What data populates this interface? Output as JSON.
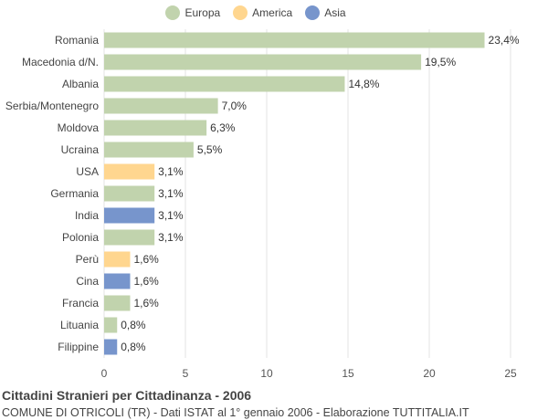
{
  "legend": [
    {
      "label": "Europa",
      "color": "#c1d3ad"
    },
    {
      "label": "America",
      "color": "#ffd68f"
    },
    {
      "label": "Asia",
      "color": "#7795cc"
    }
  ],
  "footer": {
    "title": "Cittadini Stranieri per Cittadinanza - 2006",
    "subtitle": "COMUNE DI OTRICOLI (TR) - Dati ISTAT al 1° gennaio 2006 - Elaborazione TUTTITALIA.IT"
  },
  "chart_data": {
    "type": "bar",
    "orientation": "horizontal",
    "categories": [
      "Romania",
      "Macedonia d/N.",
      "Albania",
      "Serbia/Montenegro",
      "Moldova",
      "Ucraina",
      "USA",
      "Germania",
      "India",
      "Polonia",
      "Perù",
      "Cina",
      "Francia",
      "Lituania",
      "Filippine"
    ],
    "values": [
      23.4,
      19.5,
      14.8,
      7.0,
      6.3,
      5.5,
      3.1,
      3.1,
      3.1,
      3.1,
      1.6,
      1.6,
      1.6,
      0.8,
      0.8
    ],
    "value_labels": [
      "23,4%",
      "19,5%",
      "14,8%",
      "7,0%",
      "6,3%",
      "5,5%",
      "3,1%",
      "3,1%",
      "3,1%",
      "3,1%",
      "1,6%",
      "1,6%",
      "1,6%",
      "0,8%",
      "0,8%"
    ],
    "groups": [
      "Europa",
      "Europa",
      "Europa",
      "Europa",
      "Europa",
      "Europa",
      "America",
      "Europa",
      "Asia",
      "Europa",
      "America",
      "Asia",
      "Europa",
      "Europa",
      "Asia"
    ],
    "xlim": [
      0,
      25
    ],
    "xticks": [
      0,
      5,
      10,
      15,
      20,
      25
    ],
    "grid": true,
    "legend_position": "top-center"
  }
}
